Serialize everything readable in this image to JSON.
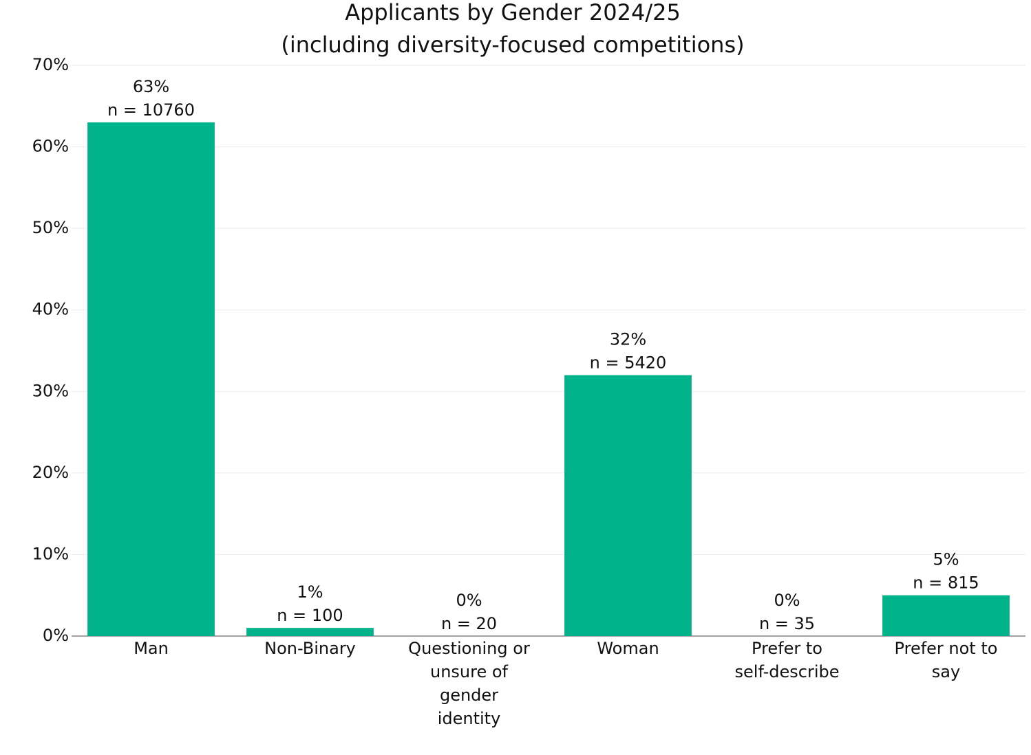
{
  "chart_data": {
    "type": "bar",
    "title": "Applicants by Gender 2024/25",
    "subtitle": "(including diversity-focused competitions)",
    "categories": [
      "Man",
      "Non-Binary",
      "Questioning or unsure of gender identity",
      "Woman",
      "Prefer to self-describe",
      "Prefer not to say"
    ],
    "values": [
      63,
      1,
      0,
      32,
      0,
      5
    ],
    "value_labels": [
      "63%",
      "1%",
      "0%",
      "32%",
      "0%",
      "5%"
    ],
    "count_labels": [
      "n = 10760",
      "n = 100",
      "n = 20",
      "n = 5420",
      "n = 35",
      "n = 815"
    ],
    "color": "#00b38a",
    "ylim": [
      0,
      70
    ],
    "yticks": [
      {
        "value": 0,
        "label": "0%"
      },
      {
        "value": 10,
        "label": "10%"
      },
      {
        "value": 20,
        "label": "20%"
      },
      {
        "value": 30,
        "label": "30%"
      },
      {
        "value": 40,
        "label": "40%"
      },
      {
        "value": 50,
        "label": "50%"
      },
      {
        "value": 60,
        "label": "60%"
      },
      {
        "value": 70,
        "label": "70%"
      }
    ],
    "grid": true
  }
}
